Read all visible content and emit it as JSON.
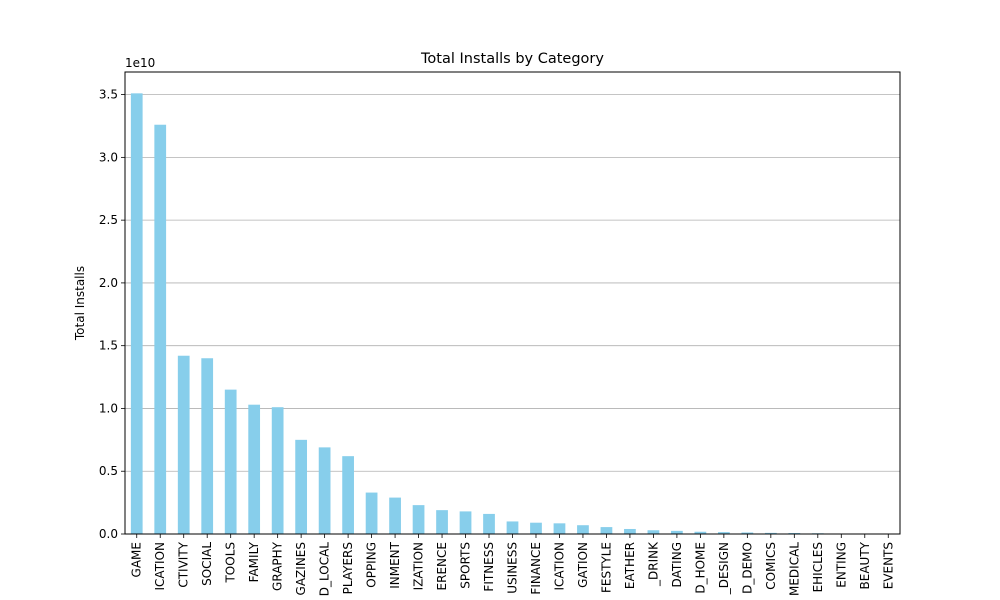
{
  "chart_data": {
    "type": "bar",
    "title": "Total Installs by Category",
    "xlabel": "",
    "ylabel": "Total Installs",
    "y_offset_label": "1e10",
    "ylim": [
      0,
      3.68
    ],
    "yticks": [
      0,
      0.5,
      1.0,
      1.5,
      2.0,
      2.5,
      3.0,
      3.5
    ],
    "ytick_labels": [
      "0.0",
      "0.5",
      "1.0",
      "1.5",
      "2.0",
      "2.5",
      "3.0",
      "3.5"
    ],
    "grid": "y",
    "bar_color": "#87ceeb",
    "categories": [
      "GAME",
      "ICATION",
      "CTIVITY",
      "SOCIAL",
      "TOOLS",
      "FAMILY",
      "GRAPHY",
      "GAZINES",
      "D_LOCAL",
      "PLAYERS",
      "OPPING",
      "INMENT",
      "IZATION",
      "ERENCE",
      "SPORTS",
      "FITNESS",
      "USINESS",
      "FINANCE",
      "ICATION",
      "GATION",
      "FESTYLE",
      "EATHER",
      "_DRINK",
      "DATING",
      "D_HOME",
      "_DESIGN",
      "D_DEMO",
      "COMICS",
      "MEDICAL",
      "EHICLES",
      "ENTING",
      "BEAUTY",
      "EVENTS"
    ],
    "values": [
      3.51,
      3.26,
      1.42,
      1.4,
      1.15,
      1.03,
      1.01,
      0.75,
      0.69,
      0.62,
      0.33,
      0.29,
      0.23,
      0.19,
      0.18,
      0.16,
      0.1,
      0.09,
      0.085,
      0.07,
      0.055,
      0.04,
      0.03,
      0.025,
      0.018,
      0.015,
      0.012,
      0.009,
      0.008,
      0.006,
      0.004,
      0.003,
      0.002
    ]
  }
}
